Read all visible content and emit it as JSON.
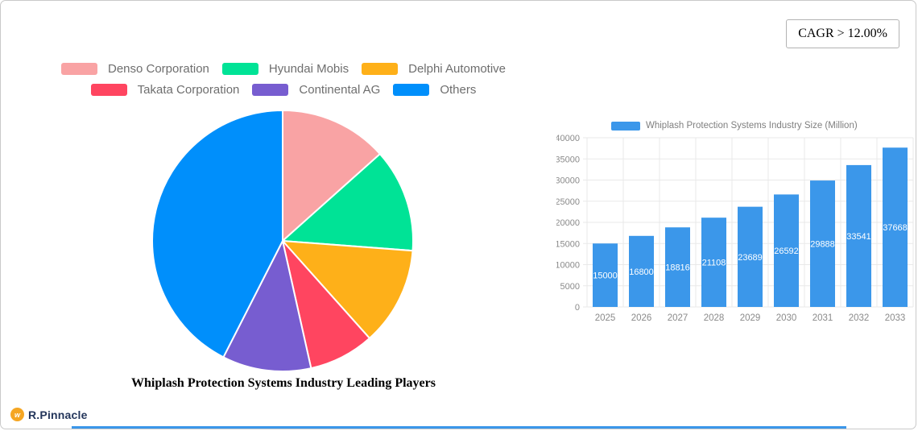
{
  "cagr_badge": {
    "label": "CAGR > 12.00%"
  },
  "brand": {
    "name": "R.Pinnacle",
    "icon": "pinnacle-circle-icon",
    "icon_glyph": "w",
    "icon_color": "#F5A623",
    "text_color": "#24365b"
  },
  "accent_strip_color": "#3b97ea",
  "chart_data": [
    {
      "type": "pie",
      "title": "Whiplash Protection Systems Industry Leading Players",
      "labels": [
        "Denso Corporation",
        "Hyundai Mobis",
        "Delphi Automotive",
        "Takata Corporation",
        "Continental AG",
        "Others"
      ],
      "values": [
        13.4,
        12.8,
        12.2,
        8.1,
        11.0,
        42.5
      ],
      "colors": [
        "#F9A3A4",
        "#00E396",
        "#FEB019",
        "#FF4560",
        "#775DD0",
        "#008FFB"
      ],
      "start_angle_deg": 0,
      "direction": "clockwise",
      "legend_position": "top",
      "legend_rows": [
        3,
        3
      ],
      "slice_border_color": "#ffffff",
      "legend_text_color": "#6e6e6e"
    },
    {
      "type": "bar",
      "legend": "Whiplash Protection Systems Industry Size (Million)",
      "categories": [
        "2025",
        "2026",
        "2027",
        "2028",
        "2029",
        "2030",
        "2031",
        "2032",
        "2033"
      ],
      "values": [
        15000,
        16800,
        18816,
        21108,
        23689,
        26592,
        29888,
        33541,
        37668
      ],
      "bar_color": "#3b97ea",
      "value_label_color": "#ffffff",
      "ylim": [
        0,
        40000
      ],
      "ytick_step": 5000,
      "grid": true,
      "grid_color": "#e9e9e9",
      "axis_label_color": "#8a8a8a",
      "value_label_position": "inside-center"
    }
  ]
}
